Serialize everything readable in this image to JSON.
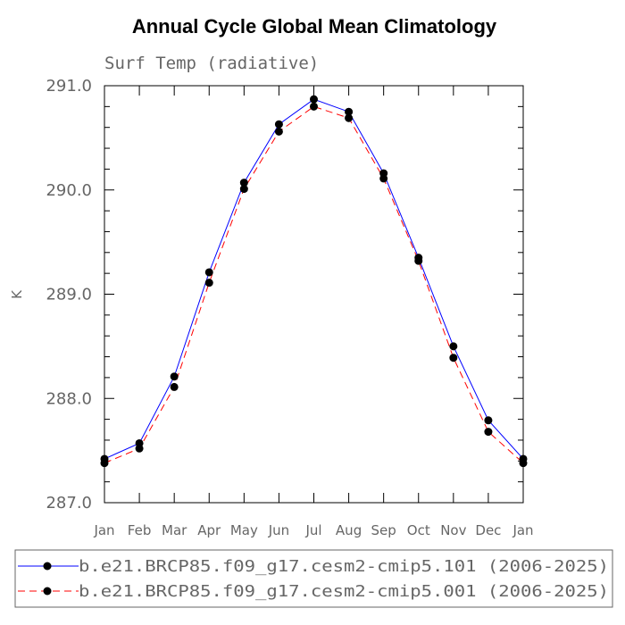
{
  "chart_data": {
    "type": "line",
    "title": "Annual Cycle Global Mean Climatology",
    "subtitle": "Surf Temp (radiative)",
    "xlabel": "",
    "ylabel": "K",
    "categories": [
      "Jan",
      "Feb",
      "Mar",
      "Apr",
      "May",
      "Jun",
      "Jul",
      "Aug",
      "Sep",
      "Oct",
      "Nov",
      "Dec",
      "Jan"
    ],
    "ylim": [
      287.0,
      291.0
    ],
    "yticks": [
      287.0,
      288.0,
      289.0,
      290.0,
      291.0
    ],
    "ytick_labels": [
      "287.0",
      "288.0",
      "289.0",
      "290.0",
      "291.0"
    ],
    "series": [
      {
        "name": "b.e21.BRCP85.f09_g17.cesm2-cmip5.101 (2006-2025)",
        "color": "#0000ff",
        "dash": "solid",
        "values": [
          287.42,
          287.57,
          288.21,
          289.21,
          290.07,
          290.63,
          290.87,
          290.75,
          290.16,
          289.35,
          288.5,
          287.79,
          287.42
        ]
      },
      {
        "name": "b.e21.BRCP85.f09_g17.cesm2-cmip5.001 (2006-2025)",
        "color": "#ff0000",
        "dash": "dashed",
        "values": [
          287.38,
          287.52,
          288.11,
          289.11,
          290.01,
          290.56,
          290.8,
          290.69,
          290.11,
          289.32,
          288.39,
          287.68,
          287.38
        ]
      }
    ],
    "legend_position": "bottom"
  }
}
